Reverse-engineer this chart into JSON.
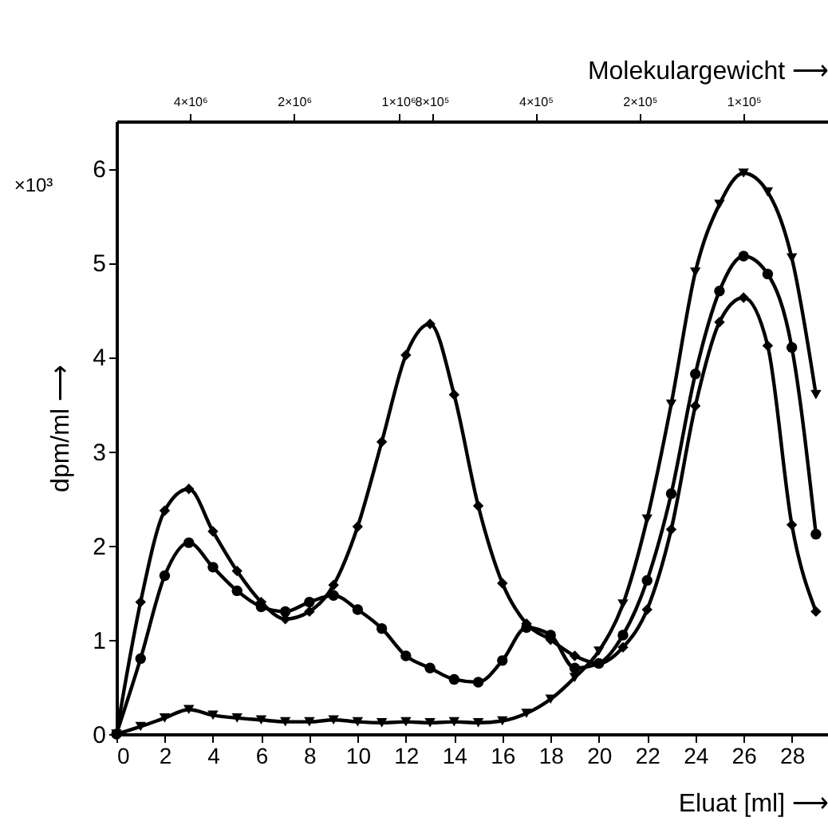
{
  "chart_data": {
    "type": "line",
    "xlabel": "Eluat [ml] ⟶",
    "ylabel": "dpm/ml ⟶",
    "x2label": "Molekulargewicht ⟶",
    "annotations": [
      "×10³"
    ],
    "x": [
      0,
      1,
      2,
      3,
      4,
      5,
      6,
      7,
      8,
      9,
      10,
      11,
      12,
      13,
      14,
      15,
      16,
      17,
      18,
      19,
      20,
      21,
      22,
      23,
      24,
      25,
      26,
      27,
      28,
      29
    ],
    "series": [
      {
        "color": "#000000",
        "marker": "diamond",
        "values": [
          0,
          1.4,
          2.37,
          2.6,
          2.15,
          1.73,
          1.4,
          1.22,
          1.3,
          1.58,
          2.2,
          3.1,
          4.02,
          4.35,
          3.6,
          2.42,
          1.6,
          1.17,
          1.0,
          0.83,
          0.75,
          0.92,
          1.32,
          2.17,
          3.48,
          4.37,
          4.63,
          4.12,
          2.22,
          1.3
        ]
      },
      {
        "color": "#000000",
        "marker": "circle",
        "values": [
          0,
          0.8,
          1.68,
          2.03,
          1.77,
          1.52,
          1.35,
          1.3,
          1.4,
          1.47,
          1.32,
          1.12,
          0.83,
          0.7,
          0.58,
          0.55,
          0.78,
          1.13,
          1.05,
          0.7,
          0.75,
          1.05,
          1.63,
          2.55,
          3.82,
          4.7,
          5.07,
          4.88,
          4.1,
          2.12
        ]
      },
      {
        "color": "#000000",
        "marker": "triangle-down",
        "values": [
          0,
          0.08,
          0.17,
          0.26,
          0.2,
          0.17,
          0.15,
          0.13,
          0.13,
          0.15,
          0.13,
          0.12,
          0.13,
          0.12,
          0.13,
          0.12,
          0.14,
          0.22,
          0.37,
          0.6,
          0.88,
          1.38,
          2.28,
          3.5,
          4.9,
          5.62,
          5.95,
          5.75,
          5.05,
          3.6
        ]
      }
    ],
    "xlim": [
      0,
      29.5
    ],
    "xticks": [
      0,
      2,
      4,
      6,
      8,
      10,
      12,
      14,
      16,
      18,
      20,
      22,
      24,
      26,
      28
    ],
    "ylim": [
      0,
      6.5
    ],
    "yticks": [
      0,
      1,
      2,
      3,
      4,
      5,
      6
    ],
    "x2lim": [
      6530000,
      57000
    ],
    "x2ticks": [
      {
        "value": 4000000,
        "label": "4×10⁶"
      },
      {
        "value": 2000000,
        "label": "2×10⁶"
      },
      {
        "value": 1000000,
        "label": "1×10⁶"
      },
      {
        "value": 800000,
        "label": "8×10⁵"
      },
      {
        "value": 400000,
        "label": "4×10⁵"
      },
      {
        "value": 200000,
        "label": "2×10⁵"
      },
      {
        "value": 100000,
        "label": "1×10⁵"
      }
    ],
    "log": "x2",
    "grid": false,
    "line_style": "solid"
  }
}
